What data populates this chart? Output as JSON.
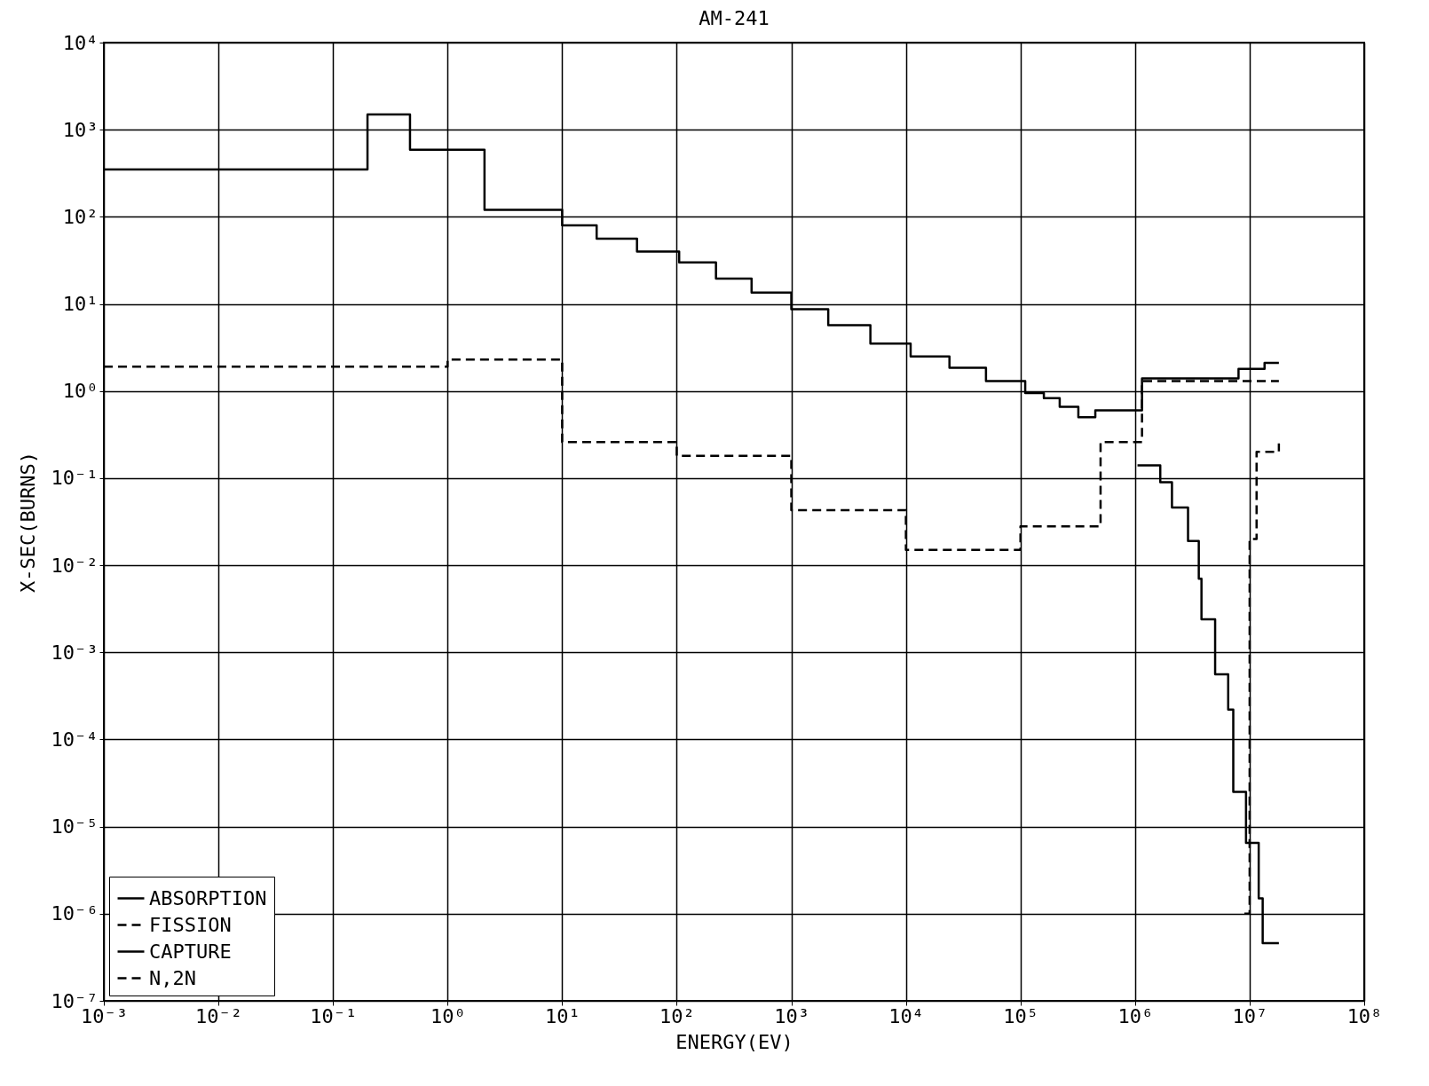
{
  "chart_data": {
    "type": "step",
    "title": "AM-241",
    "xlabel": "ENERGY(EV)",
    "ylabel": "X-SEC(BURNS)",
    "log": "xy",
    "grid": true,
    "legend": "bottom left",
    "xlim": [
      0.001,
      100000000
    ],
    "ylim": [
      1e-07,
      10000
    ],
    "xticks": [
      {
        "value": 0.001,
        "label": "10⁻³"
      },
      {
        "value": 0.01,
        "label": "10⁻²"
      },
      {
        "value": 0.1,
        "label": "10⁻¹"
      },
      {
        "value": 1,
        "label": "10⁰"
      },
      {
        "value": 10,
        "label": "10¹"
      },
      {
        "value": 100,
        "label": "10²"
      },
      {
        "value": 1000,
        "label": "10³"
      },
      {
        "value": 10000,
        "label": "10⁴"
      },
      {
        "value": 100000,
        "label": "10⁵"
      },
      {
        "value": 1000000,
        "label": "10⁶"
      },
      {
        "value": 10000000,
        "label": "10⁷"
      },
      {
        "value": 100000000,
        "label": "10⁸"
      }
    ],
    "yticks": [
      {
        "value": 1e-07,
        "label": "10⁻⁷"
      },
      {
        "value": 1e-06,
        "label": "10⁻⁶"
      },
      {
        "value": 1e-05,
        "label": "10⁻⁵"
      },
      {
        "value": 0.0001,
        "label": "10⁻⁴"
      },
      {
        "value": 0.001,
        "label": "10⁻³"
      },
      {
        "value": 0.01,
        "label": "10⁻²"
      },
      {
        "value": 0.1,
        "label": "10⁻¹"
      },
      {
        "value": 1,
        "label": "10⁰"
      },
      {
        "value": 10,
        "label": "10¹"
      },
      {
        "value": 100,
        "label": "10²"
      },
      {
        "value": 1000,
        "label": "10³"
      },
      {
        "value": 10000,
        "label": "10⁴"
      }
    ],
    "series": [
      {
        "name": "ABSORPTION",
        "color": "#000000",
        "line_style": "solid",
        "x": [
          0.001,
          0.2,
          0.47,
          2.1,
          10,
          20,
          45,
          105,
          220,
          450,
          1000,
          2100,
          4900,
          11000,
          24000,
          50000,
          110000,
          160000,
          220000,
          320000,
          450000,
          1150000,
          8000000,
          13500000,
          18000000
        ],
        "values": [
          350,
          1500,
          590,
          120,
          80,
          56,
          40,
          30,
          19.5,
          13.5,
          8.7,
          5.7,
          3.5,
          2.5,
          1.85,
          1.3,
          0.95,
          0.83,
          0.66,
          0.5,
          0.6,
          1.4,
          1.8,
          2.1,
          2.1
        ]
      },
      {
        "name": "FISSION",
        "color": "#000000",
        "line_style": "dashed",
        "x": [
          0.001,
          1,
          10,
          100,
          1000,
          10000,
          100000,
          500000,
          1150000,
          18000000
        ],
        "values": [
          1.9,
          2.3,
          0.26,
          0.18,
          0.043,
          0.015,
          0.028,
          0.26,
          1.3,
          1.3
        ]
      },
      {
        "name": "CAPTURE",
        "color": "#000000",
        "line_style": "solid",
        "x": [
          1050000,
          1660000,
          2100000,
          2900000,
          3600000,
          3800000,
          5000000,
          6500000,
          7200000,
          9300000,
          12000000,
          13000000,
          18000000
        ],
        "values": [
          0.14,
          0.09,
          0.046,
          0.019,
          0.007,
          0.0024,
          0.00056,
          0.00022,
          2.5e-05,
          6.5e-06,
          1.5e-06,
          4.6e-07,
          4.6e-07
        ]
      },
      {
        "name": "N,2N",
        "color": "#000000",
        "line_style": "dashed",
        "x": [
          9000000,
          10000000,
          11500000,
          18000000
        ],
        "values": [
          1e-06,
          0.02,
          0.2,
          0.25
        ]
      }
    ]
  }
}
